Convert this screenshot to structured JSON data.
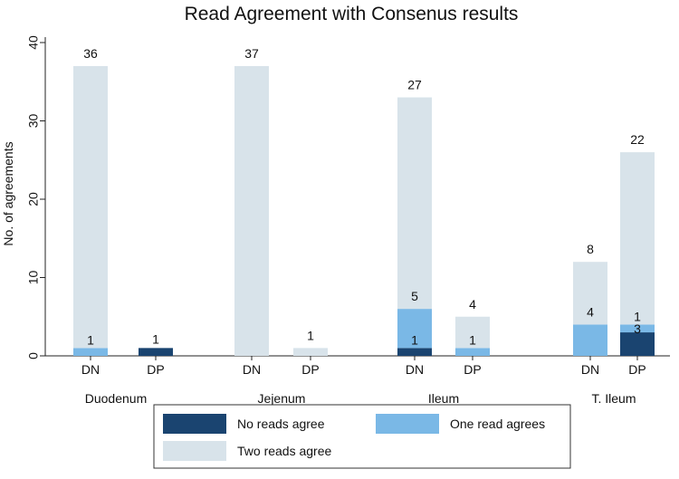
{
  "chart_data": {
    "type": "bar",
    "stacked": true,
    "title": "Read Agreement with Consenus results",
    "ylabel": "No. of agreements",
    "xlabel": "",
    "ylim": [
      0,
      40
    ],
    "yticks": [
      0,
      10,
      20,
      30,
      40
    ],
    "grid": false,
    "legend_position": "bottom",
    "groups": [
      "Duodenum",
      "Jejenum",
      "Ileum",
      "T. Ileum"
    ],
    "categories": [
      "DN",
      "DP",
      "DN",
      "DP",
      "DN",
      "DP",
      "DN",
      "DP"
    ],
    "category_group": [
      0,
      0,
      1,
      1,
      2,
      2,
      3,
      3
    ],
    "series": [
      {
        "name": "No reads agree",
        "color": "#1a4470",
        "values": [
          0,
          1,
          0,
          0,
          1,
          0,
          0,
          3
        ],
        "labels": [
          "",
          "1",
          "",
          "",
          "1",
          "",
          "",
          "3"
        ]
      },
      {
        "name": "One read agrees",
        "color": "#7ab8e6",
        "values": [
          1,
          0,
          0,
          0,
          5,
          1,
          4,
          1
        ],
        "labels": [
          "1",
          "",
          "",
          "",
          "5",
          "1",
          "4",
          "1"
        ]
      },
      {
        "name": "Two reads agree",
        "color": "#d8e3ea",
        "values": [
          36,
          0,
          37,
          1,
          27,
          4,
          8,
          22
        ],
        "labels": [
          "36",
          "",
          "37",
          "1",
          "27",
          "4",
          "8",
          "22"
        ]
      }
    ]
  }
}
